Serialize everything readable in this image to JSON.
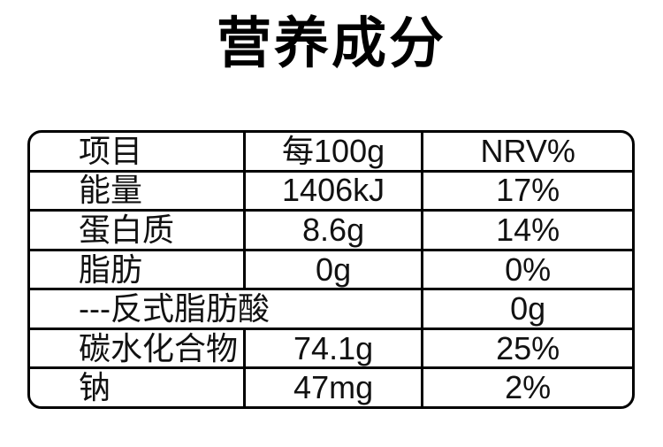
{
  "page": {
    "title": "营养成分"
  },
  "colors": {
    "background": "#ffffff",
    "border": "#000000",
    "text": "#111111",
    "title_text": "#000000"
  },
  "table": {
    "columns": [
      "项目",
      "每100g",
      "NRV%"
    ],
    "rows": [
      {
        "item": "能量",
        "per100g": "1406kJ",
        "nrv": "17%"
      },
      {
        "item": "蛋白质",
        "per100g": "8.6g",
        "nrv": "14%"
      },
      {
        "item": "脂肪",
        "per100g": "0g",
        "nrv": "0%"
      },
      {
        "item": "---反式脂肪酸",
        "nrv": "0g",
        "colspan": 2
      },
      {
        "item": "碳水化合物",
        "per100g": "74.1g",
        "nrv": "25%"
      },
      {
        "item": "钠",
        "per100g": "47mg",
        "nrv": "2%"
      }
    ]
  }
}
